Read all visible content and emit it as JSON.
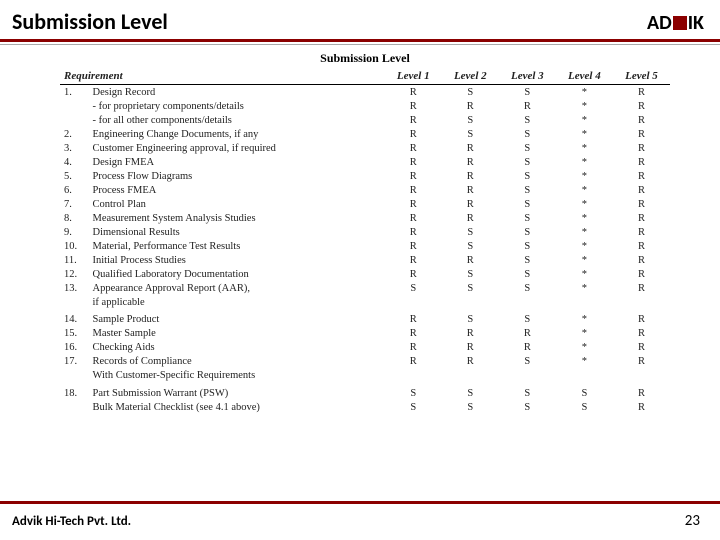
{
  "header": {
    "title": "Submission Level",
    "logo_left": "AD",
    "logo_right": "IK"
  },
  "table": {
    "title": "Submission Level",
    "headers": {
      "req": "Requirement",
      "l1": "Level 1",
      "l2": "Level 2",
      "l3": "Level 3",
      "l4": "Level 4",
      "l5": "Level 5"
    },
    "rows": [
      {
        "n": "1.",
        "req": "Design Record",
        "v": [
          "R",
          "S",
          "S",
          "*",
          "R"
        ]
      },
      {
        "n": "",
        "req": "- for proprietary components/details",
        "v": [
          "R",
          "R",
          "R",
          "*",
          "R"
        ]
      },
      {
        "n": "",
        "req": "- for all other components/details",
        "v": [
          "R",
          "S",
          "S",
          "*",
          "R"
        ]
      },
      {
        "n": "2.",
        "req": "Engineering Change Documents, if any",
        "v": [
          "R",
          "S",
          "S",
          "*",
          "R"
        ]
      },
      {
        "n": "3.",
        "req": "Customer Engineering approval, if required",
        "v": [
          "R",
          "R",
          "S",
          "*",
          "R"
        ]
      },
      {
        "n": "4.",
        "req": "Design FMEA",
        "v": [
          "R",
          "R",
          "S",
          "*",
          "R"
        ]
      },
      {
        "n": "5.",
        "req": "Process Flow Diagrams",
        "v": [
          "R",
          "R",
          "S",
          "*",
          "R"
        ]
      },
      {
        "n": "6.",
        "req": "Process FMEA",
        "v": [
          "R",
          "R",
          "S",
          "*",
          "R"
        ]
      },
      {
        "n": "7.",
        "req": "Control Plan",
        "v": [
          "R",
          "R",
          "S",
          "*",
          "R"
        ]
      },
      {
        "n": "8.",
        "req": "Measurement System Analysis Studies",
        "v": [
          "R",
          "R",
          "S",
          "*",
          "R"
        ]
      },
      {
        "n": "9.",
        "req": "Dimensional Results",
        "v": [
          "R",
          "S",
          "S",
          "*",
          "R"
        ]
      },
      {
        "n": "10.",
        "req": "Material, Performance Test Results",
        "v": [
          "R",
          "S",
          "S",
          "*",
          "R"
        ]
      },
      {
        "n": "11.",
        "req": "Initial Process Studies",
        "v": [
          "R",
          "R",
          "S",
          "*",
          "R"
        ]
      },
      {
        "n": "12.",
        "req": "Qualified Laboratory Documentation",
        "v": [
          "R",
          "S",
          "S",
          "*",
          "R"
        ]
      },
      {
        "n": "13.",
        "req": "Appearance Approval Report (AAR),",
        "v": [
          "S",
          "S",
          "S",
          "*",
          "R"
        ]
      },
      {
        "n": "",
        "req": "if applicable",
        "v": [
          "",
          "",
          "",
          "",
          ""
        ]
      },
      {
        "n": "14.",
        "req": "Sample Product",
        "v": [
          "R",
          "S",
          "S",
          "*",
          "R"
        ],
        "spacer": true
      },
      {
        "n": "15.",
        "req": "Master Sample",
        "v": [
          "R",
          "R",
          "R",
          "*",
          "R"
        ]
      },
      {
        "n": "16.",
        "req": "Checking Aids",
        "v": [
          "R",
          "R",
          "R",
          "*",
          "R"
        ]
      },
      {
        "n": "17.",
        "req": "Records of Compliance",
        "v": [
          "R",
          "R",
          "S",
          "*",
          "R"
        ]
      },
      {
        "n": "",
        "req": "With Customer-Specific Requirements",
        "v": [
          "",
          "",
          "",
          "",
          ""
        ]
      },
      {
        "n": "18.",
        "req": "Part Submission Warrant (PSW)",
        "v": [
          "S",
          "S",
          "S",
          "S",
          "R"
        ],
        "spacer": true
      },
      {
        "n": "",
        "req": "Bulk Material Checklist (see 4.1 above)",
        "v": [
          "S",
          "S",
          "S",
          "S",
          "R"
        ]
      }
    ]
  },
  "footer": {
    "company": "Advik Hi-Tech Pvt. Ltd.",
    "page": "23"
  }
}
